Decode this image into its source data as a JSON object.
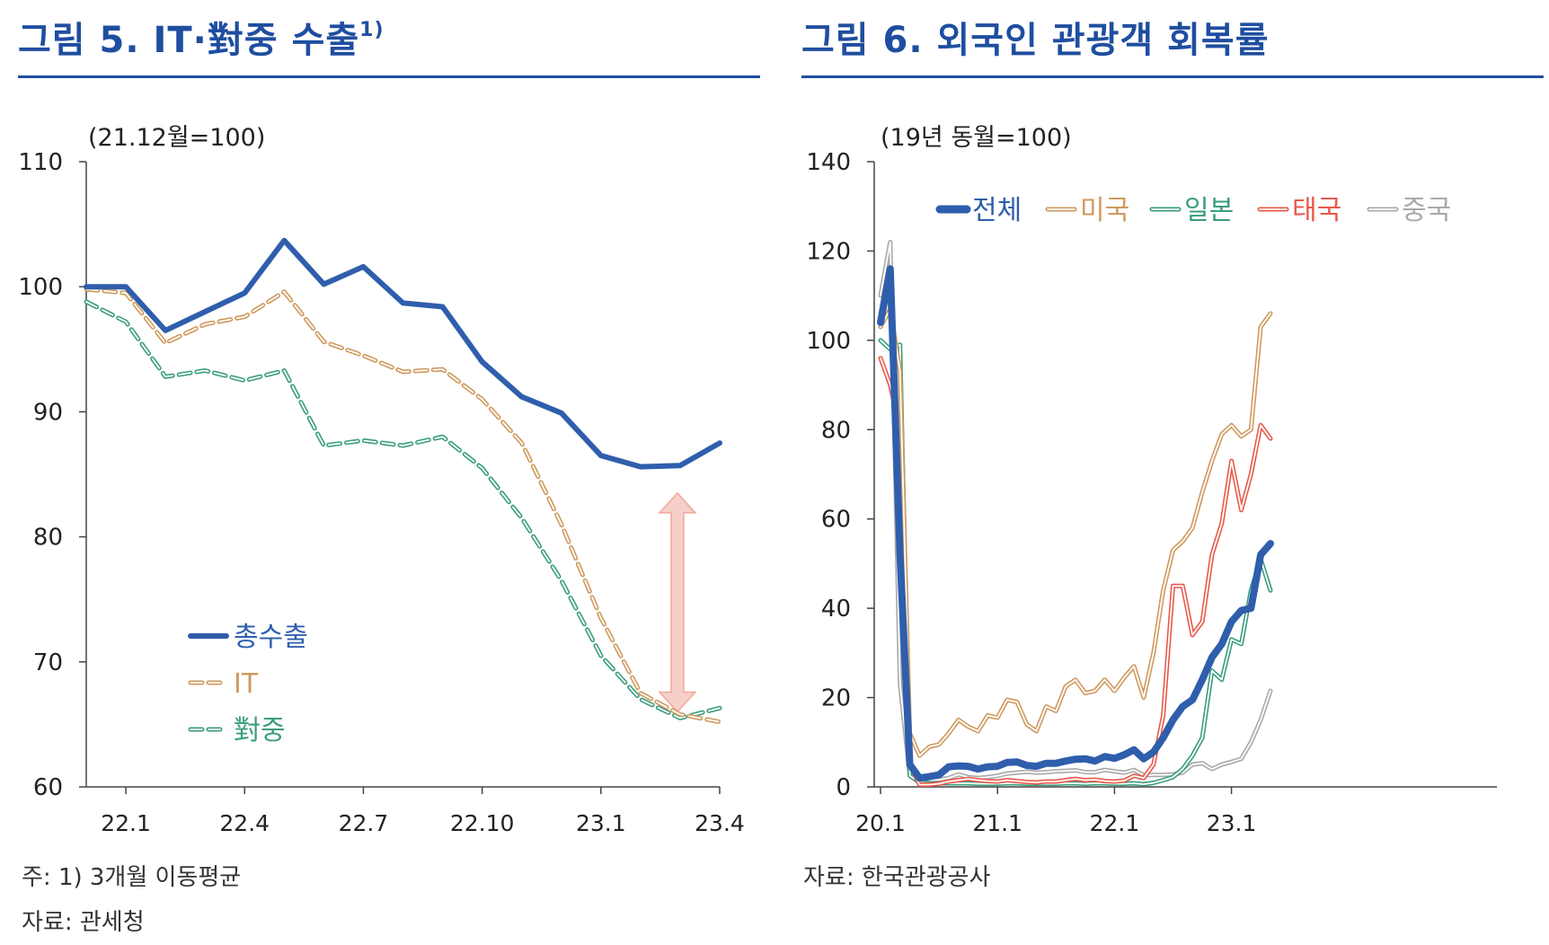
{
  "left": {
    "title": "그림 5. IT·對중 수출",
    "title_sup": "1)",
    "footnotes": [
      "주: 1) 3개월 이동평균",
      "자료: 관세청"
    ],
    "chart_data": {
      "type": "line",
      "unit_label": "(21.12월=100)",
      "ylim": [
        60,
        110
      ],
      "yticks": [
        "60",
        "70",
        "80",
        "90",
        "100",
        "110"
      ],
      "x_tick_labels": [
        "22.1",
        "22.4",
        "22.7",
        "22.10",
        "23.1",
        "23.4"
      ],
      "x": [
        "21.12",
        "22.1",
        "22.2",
        "22.3",
        "22.4",
        "22.5",
        "22.6",
        "22.7",
        "22.8",
        "22.9",
        "22.10",
        "22.11",
        "22.12",
        "23.1",
        "23.2",
        "23.3",
        "23.4"
      ],
      "series": [
        {
          "name": "총수출",
          "color": "#2f5eac",
          "style": "solid",
          "values": [
            100,
            100,
            96.5,
            98,
            99.5,
            103.7,
            100.2,
            101.6,
            98.7,
            98.4,
            94,
            91.2,
            89.9,
            86.5,
            85.6,
            85.7,
            87.5
          ]
        },
        {
          "name": "IT",
          "color": "#cf9a5e",
          "style": "double",
          "values": [
            99.8,
            99.5,
            95.5,
            97,
            97.6,
            99.6,
            95.6,
            94.5,
            93.2,
            93.4,
            91,
            87.5,
            81,
            73.5,
            67.5,
            65.8,
            65.2
          ]
        },
        {
          "name": "對중",
          "color": "#3b9d7e",
          "style": "double",
          "values": [
            98.8,
            97.2,
            92.8,
            93.3,
            92.5,
            93.3,
            87.3,
            87.7,
            87.3,
            88,
            85.5,
            81.5,
            76.5,
            70.5,
            67,
            65.5,
            66.3
          ]
        }
      ],
      "annotation": {
        "type": "double-arrow",
        "from": 66,
        "to": 83.5,
        "at_x": "23.3",
        "color": "#f6cfc8"
      }
    }
  },
  "right": {
    "title": "그림 6. 외국인 관광객 회복률",
    "footnotes": [
      "자료: 한국관광공사"
    ],
    "chart_data": {
      "type": "line",
      "unit_label": "(19년 동월=100)",
      "ylim": [
        0,
        140
      ],
      "yticks": [
        "0",
        "20",
        "40",
        "60",
        "80",
        "100",
        "120",
        "140"
      ],
      "x_tick_labels": [
        "20.1",
        "21.1",
        "22.1",
        "23.1"
      ],
      "x_start": "20.1",
      "legend": "top",
      "series": [
        {
          "name": "전체",
          "color": "#2f5eac",
          "style": "bold",
          "values": [
            104,
            116,
            52,
            5,
            2,
            2.3,
            2.7,
            4.5,
            4.7,
            4.6,
            4,
            4.5,
            4.6,
            5.5,
            5.6,
            4.8,
            4.6,
            5.3,
            5.3,
            5.8,
            6.2,
            6.3,
            5.8,
            6.8,
            6.4,
            7.2,
            8.3,
            6.3,
            7.8,
            11,
            15,
            18,
            19.5,
            24,
            29,
            32,
            37,
            39.5,
            40,
            52,
            54.5
          ]
        },
        {
          "name": "미국",
          "color": "#cf9a5e",
          "style": "double",
          "values": [
            103,
            107,
            93,
            12,
            7,
            9,
            9.5,
            12,
            15,
            13.5,
            12.5,
            16,
            15.5,
            19.5,
            19,
            14,
            12.5,
            18,
            17,
            22.5,
            24,
            21,
            21.5,
            24,
            21.5,
            24.5,
            27,
            20,
            30,
            44,
            53,
            55,
            58,
            66,
            73,
            79,
            81,
            78.5,
            80,
            103,
            106
          ]
        },
        {
          "name": "일본",
          "color": "#3b9d7e",
          "style": "double",
          "values": [
            100,
            98,
            99,
            2.5,
            1,
            0.8,
            0.8,
            0.8,
            0.8,
            0.8,
            0.7,
            0.7,
            0.7,
            0.8,
            0.8,
            0.7,
            0.7,
            0.7,
            0.7,
            0.8,
            0.8,
            0.7,
            0.8,
            0.8,
            0.7,
            0.7,
            0.8,
            0.6,
            0.9,
            1.5,
            2.2,
            4,
            7,
            11,
            26,
            24,
            33,
            32,
            44,
            51,
            44
          ]
        },
        {
          "name": "태국",
          "color": "#e8594a",
          "style": "double",
          "values": [
            96,
            90,
            80,
            5,
            0.5,
            0.5,
            0.7,
            1.2,
            1.5,
            1.8,
            1.5,
            1.3,
            1.2,
            1.5,
            1.3,
            1.1,
            1.0,
            1.2,
            1.2,
            1.5,
            1.8,
            1.5,
            1.6,
            1.3,
            1.2,
            1.4,
            2.5,
            2.0,
            5,
            16,
            45,
            45,
            34,
            37,
            52,
            59,
            73,
            62,
            70,
            81,
            78
          ]
        },
        {
          "name": "중국",
          "color": "#a9a9a9",
          "style": "double",
          "values": [
            110,
            122,
            23,
            2.5,
            1.5,
            1.5,
            1.6,
            2,
            2.8,
            2.2,
            2,
            2.2,
            2.5,
            3,
            3.2,
            3.4,
            3.2,
            3.3,
            3.5,
            3.6,
            3.7,
            3.3,
            3.3,
            3.8,
            3.5,
            3.2,
            3.8,
            2.6,
            2.7,
            2.7,
            2.8,
            3.2,
            5,
            5.3,
            4,
            5,
            5.6,
            6.3,
            10,
            15,
            21.5
          ]
        }
      ]
    }
  }
}
